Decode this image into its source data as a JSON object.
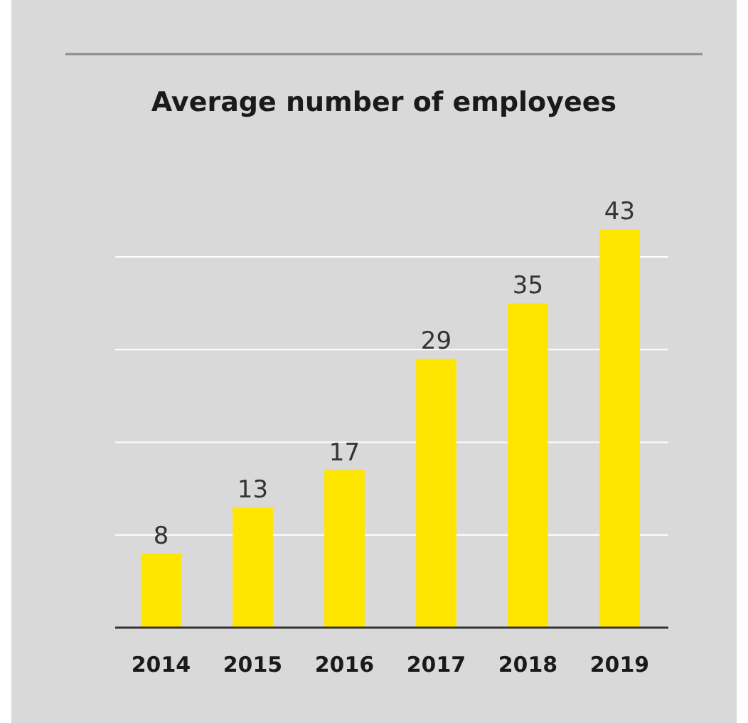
{
  "chart_data": {
    "type": "bar",
    "title": "Average number of employees",
    "categories": [
      "2014",
      "2015",
      "2016",
      "2017",
      "2018",
      "2019"
    ],
    "values": [
      8,
      13,
      17,
      29,
      35,
      43
    ],
    "color": "#ffe600",
    "grid": "y",
    "tick_labels": "x",
    "data_labels": true
  }
}
